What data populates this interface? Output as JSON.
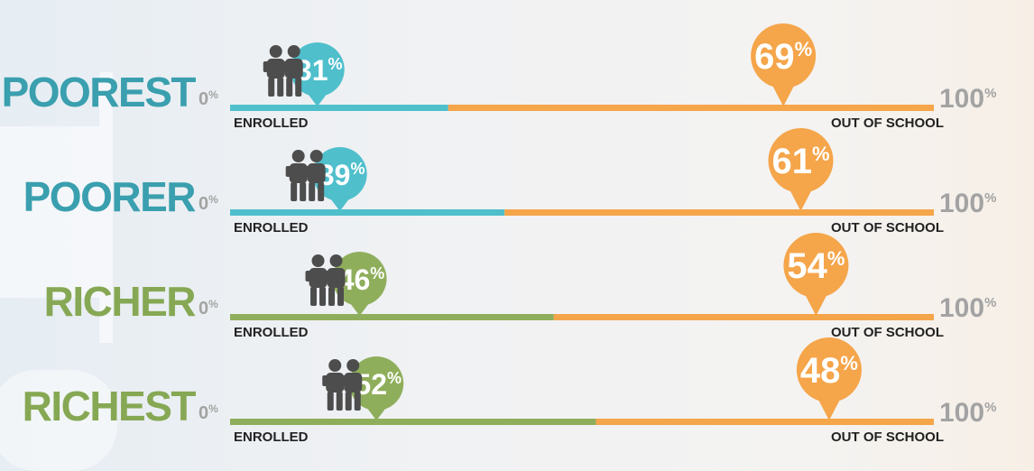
{
  "chart_data": {
    "type": "bar",
    "categories": [
      "POOREST",
      "POORER",
      "RICHER",
      "RICHEST"
    ],
    "series": [
      {
        "name": "ENROLLED",
        "values": [
          31,
          39,
          46,
          52
        ]
      },
      {
        "name": "OUT OF SCHOOL",
        "values": [
          69,
          61,
          54,
          48
        ]
      }
    ],
    "stacked": true,
    "xlim": [
      0,
      100
    ],
    "axis_start_label": "0",
    "axis_end_label": "100",
    "unit_symbol": "%",
    "colors": {
      "poor_enrolled": "#4fbfcc",
      "poor_label": "#3a9fae",
      "rich_enrolled": "#8fae5b",
      "rich_label": "#86a854",
      "out_of_school": "#f5a54a",
      "children_icon": "#4d4d4d"
    },
    "icons": [
      "children-icon"
    ]
  }
}
